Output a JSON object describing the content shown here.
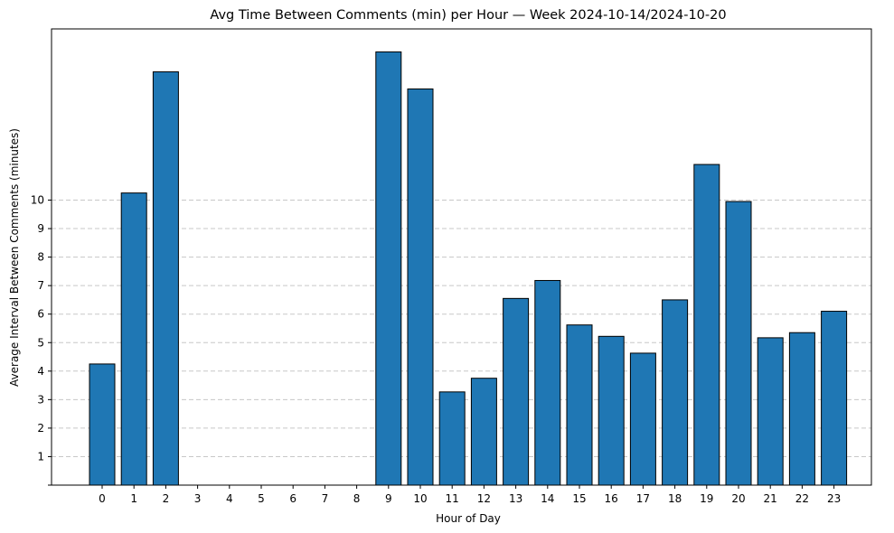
{
  "chart_data": {
    "type": "bar",
    "title": "Avg Time Between Comments (min) per Hour — Week 2024-10-14/2024-10-20",
    "xlabel": "Hour of Day",
    "ylabel": "Average Interval Between Comments (minutes)",
    "categories": [
      "0",
      "1",
      "2",
      "3",
      "4",
      "5",
      "6",
      "7",
      "8",
      "9",
      "10",
      "11",
      "12",
      "13",
      "14",
      "15",
      "16",
      "17",
      "18",
      "19",
      "20",
      "21",
      "22",
      "23"
    ],
    "values": [
      4.25,
      10.25,
      14.5,
      0,
      0,
      0,
      0,
      0,
      0,
      15.2,
      13.9,
      3.27,
      3.75,
      6.55,
      7.18,
      5.62,
      5.22,
      4.63,
      6.5,
      11.25,
      9.95,
      5.17,
      5.35,
      6.1
    ],
    "yticks": [
      1,
      2,
      3,
      4,
      5,
      6,
      7,
      8,
      9,
      10
    ],
    "ylim": [
      0,
      16
    ],
    "grid": "y-dashed",
    "colors": {
      "bar": "#1f77b4",
      "edge": "#000000",
      "grid": "#c8c8c8"
    }
  }
}
